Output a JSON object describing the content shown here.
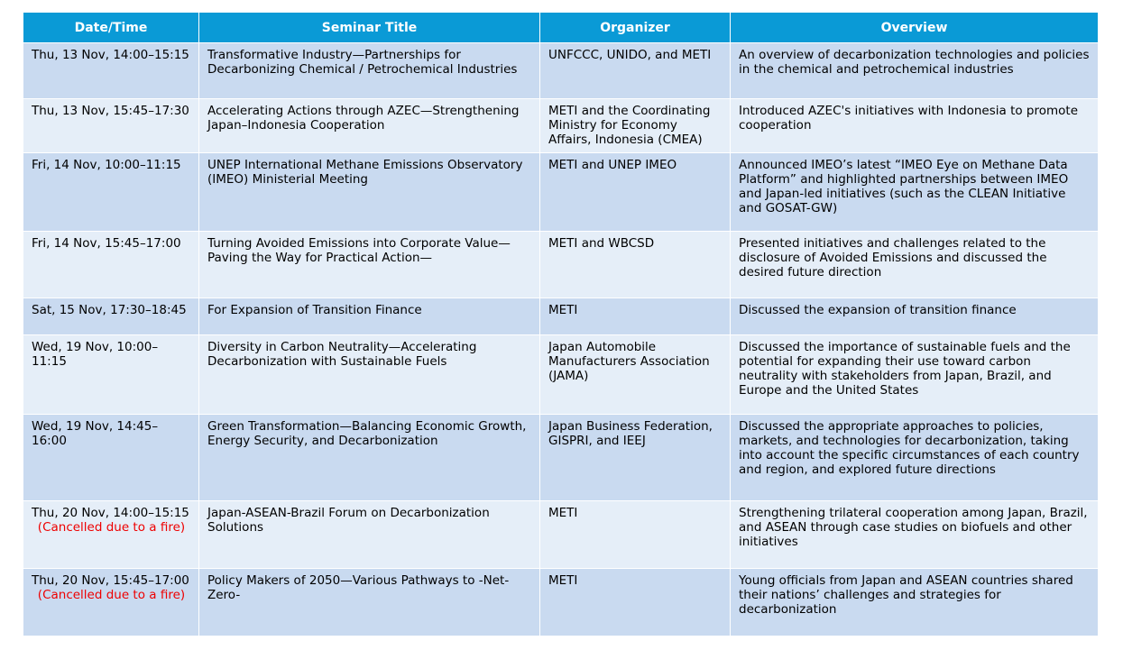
{
  "table": {
    "headers": [
      "Date/Time",
      "Seminar Title",
      "Organizer",
      "Overview"
    ],
    "rows": [
      {
        "date": "Thu, 13 Nov, 14:00–15:15",
        "note": "",
        "title": "Transformative Industry—Partnerships for Decarbonizing Chemical / Petrochemical Industries",
        "organizer": "UNFCCC, UNIDO, and METI",
        "overview": "An overview of decarbonization technologies and policies in the chemical and petrochemical industries"
      },
      {
        "date": "Thu, 13 Nov, 15:45–17:30",
        "note": "",
        "title": "Accelerating Actions through AZEC—Strengthening Japan–Indonesia Cooperation",
        "organizer": "METI and the Coordinating Ministry for Economy Affairs, Indonesia (CMEA)",
        "overview": "Introduced AZEC's initiatives with Indonesia to promote cooperation"
      },
      {
        "date": "Fri, 14 Nov, 10:00–11:15",
        "note": "",
        "title": "UNEP International Methane Emissions Observatory (IMEO) Ministerial Meeting",
        "organizer": "METI and UNEP IMEO",
        "overview": "Announced IMEO’s latest “IMEO Eye on Methane Data Platform” and highlighted partnerships between IMEO and Japan-led initiatives (such as the CLEAN Initiative and GOSAT-GW)"
      },
      {
        "date": "Fri, 14 Nov, 15:45–17:00",
        "note": "",
        "title": "Turning Avoided Emissions into Corporate Value—Paving the Way for Practical Action—",
        "organizer": "METI and WBCSD",
        "overview": "Presented initiatives and challenges related to the disclosure of Avoided Emissions and discussed the desired future direction"
      },
      {
        "date": "Sat, 15 Nov, 17:30–18:45",
        "note": "",
        "title": "For Expansion of Transition Finance",
        "organizer": "METI",
        "overview": "Discussed the expansion of transition finance"
      },
      {
        "date": "Wed, 19 Nov, 10:00–11:15",
        "note": "",
        "title": "Diversity in Carbon Neutrality—Accelerating Decarbonization with Sustainable Fuels",
        "organizer": "Japan Automobile Manufacturers Association (JAMA)",
        "overview": "Discussed the importance of sustainable fuels and the potential for expanding their use toward carbon neutrality with stakeholders from Japan, Brazil, and Europe and the United States"
      },
      {
        "date": "Wed, 19 Nov, 14:45–16:00",
        "note": "",
        "title": "Green Transformation—Balancing Economic Growth, Energy Security, and Decarbonization",
        "organizer": "Japan Business Federation, GISPRI, and IEEJ",
        "overview": "Discussed the appropriate approaches to policies, markets, and technologies for decarbonization, taking into account the specific circumstances of each country and region, and explored future directions"
      },
      {
        "date": "Thu, 20 Nov, 14:00–15:15",
        "note": "(Cancelled due to a fire)",
        "title": "Japan-ASEAN-Brazil Forum on Decarbonization Solutions",
        "organizer": "METI",
        "overview": "Strengthening trilateral cooperation among Japan, Brazil, and ASEAN through case studies on biofuels and other initiatives"
      },
      {
        "date": "Thu, 20 Nov, 15:45–17:00",
        "note": "(Cancelled due to a fire)",
        "title": "Policy Makers of 2050—Various Pathways to -Net-Zero-",
        "organizer": "METI",
        "overview": "Young officials from Japan and ASEAN countries shared their nations’ challenges and strategies for decarbonization"
      }
    ]
  }
}
